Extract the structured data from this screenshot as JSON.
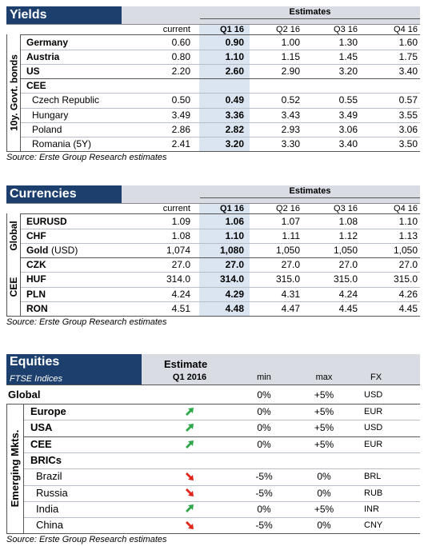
{
  "yields": {
    "title": "Yields",
    "estimates": "Estimates",
    "columns": [
      "current",
      "Q1 16",
      "Q2 16",
      "Q3 16",
      "Q4 16"
    ],
    "side_label": "10y. Govt. bonds",
    "rows": [
      {
        "name": "Germany",
        "values": [
          "0.60",
          "0.90",
          "1.00",
          "1.30",
          "1.60"
        ]
      },
      {
        "name": "Austria",
        "values": [
          "0.80",
          "1.10",
          "1.15",
          "1.45",
          "1.75"
        ]
      },
      {
        "name": "US",
        "values": [
          "2.20",
          "2.60",
          "2.90",
          "3.20",
          "3.40"
        ]
      },
      {
        "name": "CEE"
      },
      {
        "name": "Czech Republic",
        "values": [
          "0.50",
          "0.49",
          "0.52",
          "0.55",
          "0.57"
        ]
      },
      {
        "name": "Hungary",
        "values": [
          "3.49",
          "3.36",
          "3.43",
          "3.49",
          "3.55"
        ]
      },
      {
        "name": "Poland",
        "values": [
          "2.86",
          "2.82",
          "2.93",
          "3.06",
          "3.06"
        ]
      },
      {
        "name": "Romania (5Y)",
        "values": [
          "2.41",
          "3.20",
          "3.30",
          "3.40",
          "3.50"
        ]
      }
    ],
    "source": "Source: Erste Group Research estimates"
  },
  "currencies": {
    "title": "Currencies",
    "estimates": "Estimates",
    "columns": [
      "current",
      "Q1 16",
      "Q2 16",
      "Q3 16",
      "Q4 16"
    ],
    "groups": [
      {
        "label": "Global",
        "rows": [
          {
            "name": "EURUSD",
            "values": [
              "1.09",
              "1.06",
              "1.07",
              "1.08",
              "1.10"
            ]
          },
          {
            "name": "CHF",
            "values": [
              "1.08",
              "1.10",
              "1.11",
              "1.12",
              "1.13"
            ]
          },
          {
            "name": "Gold",
            "unit": "(USD)",
            "values": [
              "1,074",
              "1,080",
              "1,050",
              "1,050",
              "1,050"
            ]
          }
        ]
      },
      {
        "label": "CEE",
        "rows": [
          {
            "name": "CZK",
            "values": [
              "27.0",
              "27.0",
              "27.0",
              "27.0",
              "27.0"
            ]
          },
          {
            "name": "HUF",
            "values": [
              "314.0",
              "314.0",
              "315.0",
              "315.0",
              "315.0"
            ]
          },
          {
            "name": "PLN",
            "values": [
              "4.24",
              "4.29",
              "4.31",
              "4.24",
              "4.26"
            ]
          },
          {
            "name": "RON",
            "values": [
              "4.51",
              "4.48",
              "4.47",
              "4.45",
              "4.45"
            ]
          }
        ]
      }
    ],
    "source": "Source: Erste Group Research estimates"
  },
  "equities": {
    "title": "Equities",
    "estimate": "Estimate",
    "subtitle": "FTSE Indices",
    "columns": [
      "Q1 2016",
      "min",
      "max",
      "FX"
    ],
    "global": {
      "name": "Global",
      "min": "0%",
      "max": "+5%",
      "fx": "USD"
    },
    "side_label": "Emerging Mkts.",
    "rows": [
      {
        "name": "Europe",
        "min": "0%",
        "max": "+5%",
        "fx": "EUR"
      },
      {
        "name": "USA",
        "min": "0%",
        "max": "+5%",
        "fx": "USD"
      },
      {
        "name": "CEE",
        "min": "0%",
        "max": "+5%",
        "fx": "EUR"
      },
      {
        "name": "BRICs"
      },
      {
        "name": "Brazil",
        "min": "-5%",
        "max": "0%",
        "fx": "BRL"
      },
      {
        "name": "Russia",
        "min": "-5%",
        "max": "0%",
        "fx": "RUB"
      },
      {
        "name": "India",
        "min": "0%",
        "max": "+5%",
        "fx": "INR"
      },
      {
        "name": "China",
        "min": "-5%",
        "max": "0%",
        "fx": "CNY"
      }
    ],
    "source": "Source: Erste Group Research estimates"
  }
}
